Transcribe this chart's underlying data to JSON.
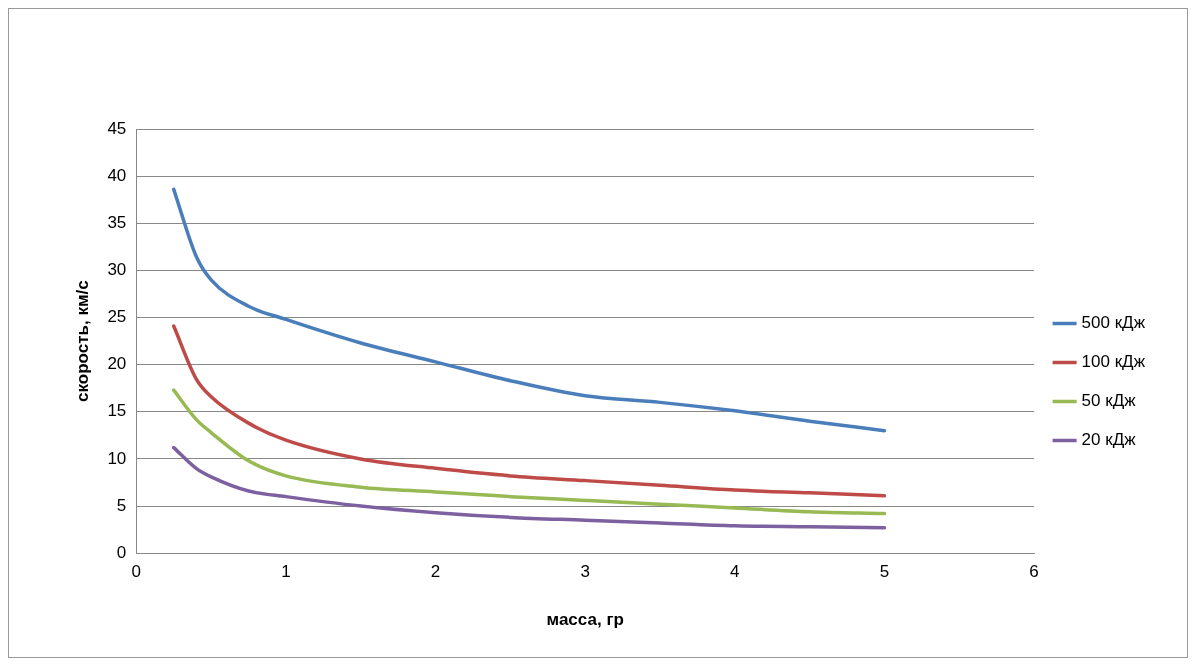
{
  "chart_data": {
    "type": "line",
    "xlabel": "масса, гр",
    "ylabel": "скорость, км/с",
    "xlim": [
      0,
      6
    ],
    "xticks": [
      0,
      1,
      2,
      3,
      4,
      5,
      6
    ],
    "ylim": [
      0,
      45
    ],
    "yticks": [
      0,
      5,
      10,
      15,
      20,
      25,
      30,
      35,
      40,
      45
    ],
    "grid": "y",
    "legend": "right",
    "marker": "none",
    "line_style": "solid",
    "x": [
      0.25,
      0.4,
      0.5,
      0.75,
      1,
      1.5,
      2,
      2.5,
      3,
      3.5,
      4,
      4.5,
      5
    ],
    "series": [
      {
        "name": "500 кДж",
        "color": "#4a7ebb",
        "values": [
          38.6,
          31.5,
          29,
          26.2,
          24.8,
          22.3,
          20.3,
          18.3,
          16.7,
          16.0,
          15.1,
          14.0,
          13.0
        ]
      },
      {
        "name": "100 кДж",
        "color": "#be4b48",
        "values": [
          24.1,
          18.5,
          16.6,
          13.8,
          12.0,
          10.0,
          9.0,
          8.2,
          7.7,
          7.2,
          6.7,
          6.4,
          6.1
        ]
      },
      {
        "name": "50 кДж",
        "color": "#98b954",
        "values": [
          17.3,
          14.2,
          12.8,
          9.8,
          8.2,
          7.0,
          6.5,
          6.0,
          5.6,
          5.2,
          4.8,
          4.4,
          4.2
        ]
      },
      {
        "name": "20 кДж",
        "color": "#7d60a0",
        "values": [
          11.2,
          9.0,
          8.1,
          6.6,
          6.0,
          5.0,
          4.3,
          3.8,
          3.5,
          3.2,
          2.9,
          2.8,
          2.7
        ]
      }
    ]
  }
}
